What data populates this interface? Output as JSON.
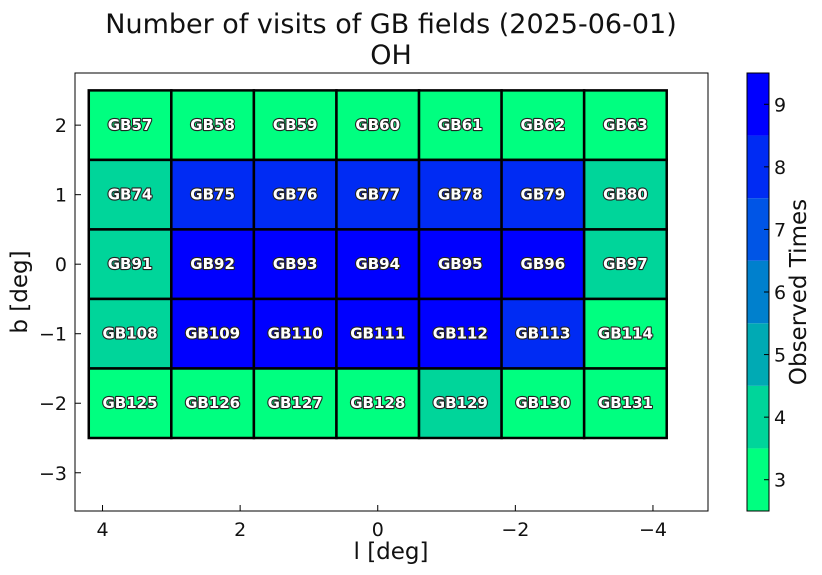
{
  "chart_data": {
    "type": "heatmap",
    "title": "Number of visits of GB fields (2025-06-01)",
    "subtitle": "OH",
    "xlabel": "l [deg]",
    "ylabel": "b [deg]",
    "x_ticks": [
      4,
      2,
      0,
      -2,
      -4
    ],
    "x_tick_labels": [
      "4",
      "2",
      "0",
      "−2",
      "−4"
    ],
    "y_ticks": [
      2,
      1,
      0,
      -1,
      -2,
      -3
    ],
    "y_tick_labels": [
      "2",
      "1",
      "0",
      "−1",
      "−2",
      "−3"
    ],
    "xlim": [
      4.4,
      -4.8
    ],
    "ylim": [
      -3.55,
      2.75
    ],
    "x_inverted": true,
    "grid": false,
    "columns_l": [
      3.6,
      2.4,
      1.2,
      0.0,
      -1.2,
      -2.4,
      -3.6
    ],
    "rows_b": [
      2.0,
      1.0,
      0.0,
      -1.0,
      -2.0
    ],
    "cell_width_deg": 1.2,
    "cell_height_deg": 1.0,
    "fields": [
      [
        "GB57",
        "GB58",
        "GB59",
        "GB60",
        "GB61",
        "GB62",
        "GB63"
      ],
      [
        "GB74",
        "GB75",
        "GB76",
        "GB77",
        "GB78",
        "GB79",
        "GB80"
      ],
      [
        "GB91",
        "GB92",
        "GB93",
        "GB94",
        "GB95",
        "GB96",
        "GB97"
      ],
      [
        "GB108",
        "GB109",
        "GB110",
        "GB111",
        "GB112",
        "GB113",
        "GB114"
      ],
      [
        "GB125",
        "GB126",
        "GB127",
        "GB128",
        "GB129",
        "GB130",
        "GB131"
      ]
    ],
    "values": [
      [
        3,
        3,
        3,
        3,
        3,
        3,
        3
      ],
      [
        4,
        8,
        8,
        8,
        8,
        8,
        4
      ],
      [
        4,
        9,
        9,
        9,
        9,
        9,
        4
      ],
      [
        4,
        9,
        9,
        9,
        9,
        8,
        3
      ],
      [
        3,
        3,
        3,
        3,
        4,
        3,
        3
      ]
    ],
    "colorbar": {
      "label": "Observed Times",
      "range": [
        2.5,
        9.5
      ],
      "ticks": [
        3,
        4,
        5,
        6,
        7,
        8,
        9
      ],
      "levels": [
        3,
        4,
        5,
        6,
        7,
        8,
        9
      ],
      "colors": [
        "#00ff80",
        "#00d59a",
        "#00aab4",
        "#0080cd",
        "#0055e6",
        "#002bf3",
        "#0000ff"
      ],
      "placement": "right"
    }
  }
}
